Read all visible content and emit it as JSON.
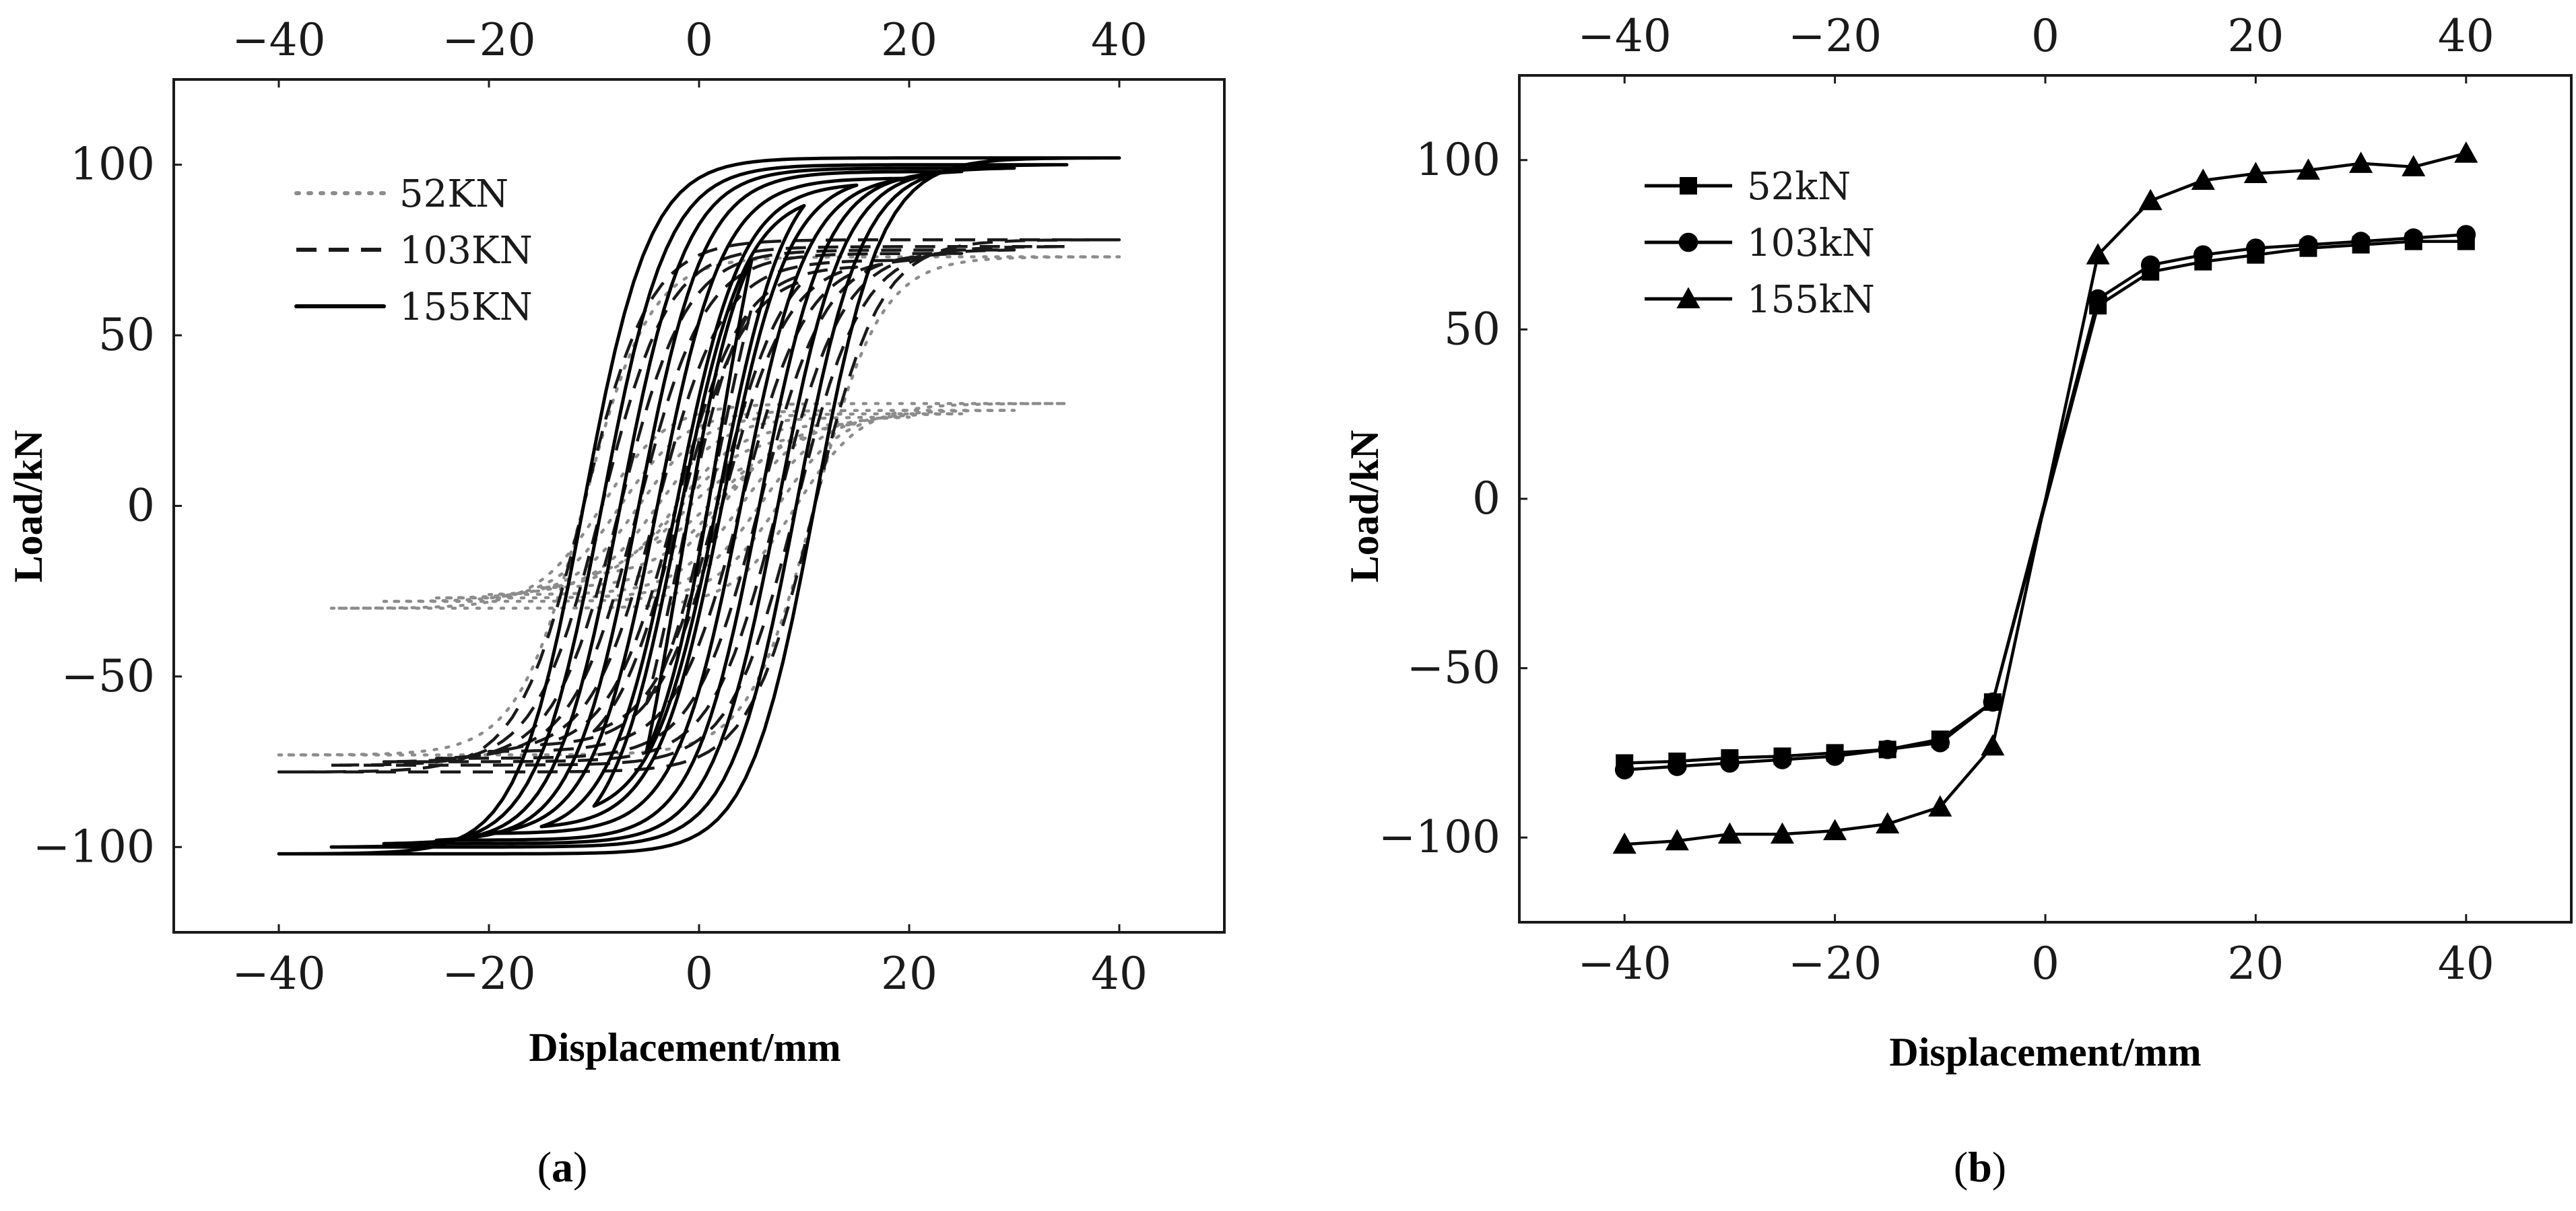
{
  "figure": {
    "panels": [
      {
        "label_open": "(",
        "label_letter": "a",
        "label_close": ")"
      },
      {
        "label_open": "(",
        "label_letter": "b",
        "label_close": ")"
      }
    ]
  },
  "chart_data": [
    {
      "type": "line",
      "panel": "a",
      "title": "",
      "xlabel": "Displacement/mm",
      "ylabel": "Load/kN",
      "xlim": [
        -50,
        50
      ],
      "ylim": [
        -125,
        125
      ],
      "xticks": [
        -40,
        -20,
        0,
        20,
        40
      ],
      "yticks": [
        -100,
        -50,
        0,
        50,
        100
      ],
      "top_ticks": [
        -40,
        -20,
        0,
        20,
        40
      ],
      "grid": false,
      "legend_position": "top-left",
      "description": "hysteresis loops",
      "series": [
        {
          "name": "52KN",
          "style": "dotted",
          "color": "#8c8c8c",
          "loops": [
            {
              "amp": 5,
              "peak": 12
            },
            {
              "amp": 10,
              "peak": 20
            },
            {
              "amp": 15,
              "peak": 24
            },
            {
              "amp": 20,
              "peak": 26
            },
            {
              "amp": 25,
              "peak": 27
            },
            {
              "amp": 30,
              "peak": 28
            },
            {
              "amp": 35,
              "peak": 30
            },
            {
              "amp": 40,
              "peak": 73
            }
          ]
        },
        {
          "name": "103KN",
          "style": "dashed",
          "color": "#1a1a1a",
          "loops": [
            {
              "amp": 5,
              "peak": 58
            },
            {
              "amp": 10,
              "peak": 66
            },
            {
              "amp": 15,
              "peak": 70
            },
            {
              "amp": 20,
              "peak": 72
            },
            {
              "amp": 25,
              "peak": 74
            },
            {
              "amp": 30,
              "peak": 75
            },
            {
              "amp": 35,
              "peak": 76
            },
            {
              "amp": 40,
              "peak": 78
            }
          ]
        },
        {
          "name": "155KN",
          "style": "solid",
          "color": "#000000",
          "loops": [
            {
              "amp": 5,
              "peak": 72
            },
            {
              "amp": 10,
              "peak": 88
            },
            {
              "amp": 15,
              "peak": 94
            },
            {
              "amp": 20,
              "peak": 96
            },
            {
              "amp": 25,
              "peak": 98
            },
            {
              "amp": 30,
              "peak": 99
            },
            {
              "amp": 35,
              "peak": 100
            },
            {
              "amp": 40,
              "peak": 102
            }
          ]
        }
      ]
    },
    {
      "type": "line",
      "panel": "b",
      "title": "",
      "xlabel": "Displacement/mm",
      "ylabel": "Load/kN",
      "xlim": [
        -50,
        50
      ],
      "ylim": [
        -125,
        125
      ],
      "xticks": [
        -40,
        -20,
        0,
        20,
        40
      ],
      "yticks": [
        -100,
        -50,
        0,
        50,
        100
      ],
      "top_ticks": [
        -40,
        -20,
        0,
        20,
        40
      ],
      "grid": false,
      "legend_position": "top-left",
      "x": [
        -40,
        -35,
        -30,
        -25,
        -20,
        -15,
        -10,
        -5,
        5,
        10,
        15,
        20,
        25,
        30,
        35,
        40
      ],
      "series": [
        {
          "name": "52kN",
          "marker": "square",
          "values": [
            -78,
            -77.5,
            -76.5,
            -76,
            -75,
            -74,
            -71,
            -60,
            57,
            67,
            70,
            72,
            74,
            75,
            76,
            76
          ]
        },
        {
          "name": "103kN",
          "marker": "circle",
          "values": [
            -80,
            -79,
            -78,
            -77,
            -76,
            -74,
            -72,
            -60,
            59,
            69,
            72,
            74,
            75,
            76,
            77,
            78
          ]
        },
        {
          "name": "155kN",
          "marker": "triangle",
          "values": [
            -102,
            -101,
            -99,
            -99,
            -98,
            -96,
            -91,
            -73,
            72,
            88,
            94,
            96,
            97,
            99,
            98,
            102
          ]
        }
      ]
    }
  ]
}
